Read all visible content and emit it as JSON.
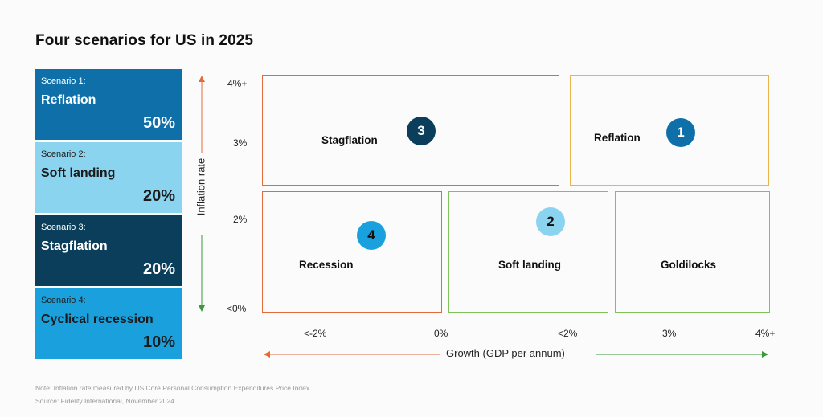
{
  "title": "Four scenarios for US in 2025",
  "scenarios": [
    {
      "num": "Scenario 1:",
      "name": "Reflation",
      "pct": "50%"
    },
    {
      "num": "Scenario 2:",
      "name": "Soft landing",
      "pct": "20%"
    },
    {
      "num": "Scenario 3:",
      "name": "Stagflation",
      "pct": "20%"
    },
    {
      "num": "Scenario 4:",
      "name": "Cyclical recession",
      "pct": "10%"
    }
  ],
  "y_axis": {
    "label": "Inflation rate",
    "ticks": [
      "4%+",
      "3%",
      "2%",
      "<0%"
    ]
  },
  "x_axis": {
    "label": "Growth (GDP per annum)",
    "ticks": [
      "<-2%",
      "0%",
      "<2%",
      "3%",
      "4%+"
    ]
  },
  "quadrants": [
    {
      "label": "Stagflation",
      "badge": "3",
      "border_color": "#e36a3a",
      "badge_color": "#0b3e5a"
    },
    {
      "label": "Reflation",
      "badge": "1",
      "border_color": "#e8b54a",
      "badge_color": "#0f6fa8"
    },
    {
      "label": "Recession",
      "badge": "4",
      "border_color": "#e36a3a",
      "badge_color": "#1aa1dd"
    },
    {
      "label": "Soft landing",
      "badge": "2",
      "border_color": "#7cc35a",
      "badge_color": "#8ad4ef"
    },
    {
      "label": "Goldilocks",
      "badge": "",
      "border_color": "#7cc35a",
      "badge_color": ""
    }
  ],
  "colors": {
    "arrow_up": "#e36a3a",
    "arrow_down": "#3a9a3a",
    "arrow_left": "#e36a3a",
    "arrow_right": "#3a9a3a"
  },
  "notes": [
    "Note: Inflation rate measured by US Core Personal Consumption Expenditures Price Index.",
    "Source: Fidelity International, November 2024."
  ]
}
